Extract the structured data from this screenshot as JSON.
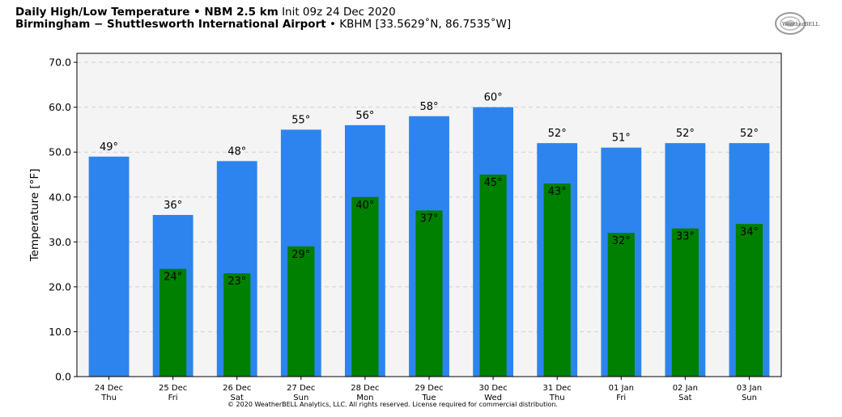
{
  "header": {
    "line1_bold": "Daily High/Low Temperature • NBM 2.5 km",
    "line1_plain": "Init 09z 24 Dec 2020",
    "line2_bold": "Birmingham − Shuttlesworth International Airport",
    "line2_plain": "• KBHM [33.5629˚N, 86.7535˚W]"
  },
  "logo": {
    "text": "WeatherBELL"
  },
  "footer": {
    "copyright": "© 2020 WeatherBELL Analytics, LLC. All rights reserved. License required for commercial distribution."
  },
  "colors": {
    "high": "#2e84ee",
    "low": "#008000",
    "plot_bg": "#f4f4f4"
  },
  "chart_data": {
    "type": "bar",
    "title": "Daily High/Low Temperature • NBM 2.5 km",
    "ylabel": "Temperature [°F]",
    "xlabel": "",
    "ylim": [
      0,
      72
    ],
    "yticks": [
      "0.0",
      "10.0",
      "20.0",
      "30.0",
      "40.0",
      "50.0",
      "60.0",
      "70.0"
    ],
    "grid": true,
    "categories": [
      "24 Dec",
      "25 Dec",
      "26 Dec",
      "27 Dec",
      "28 Dec",
      "29 Dec",
      "30 Dec",
      "31 Dec",
      "01 Jan",
      "02 Jan",
      "03 Jan"
    ],
    "weekdays": [
      "Thu",
      "Fri",
      "Sat",
      "Sun",
      "Mon",
      "Tue",
      "Wed",
      "Thu",
      "Fri",
      "Sat",
      "Sun"
    ],
    "series": [
      {
        "values": [
          49,
          36,
          48,
          55,
          56,
          58,
          60,
          52,
          51,
          52,
          52
        ],
        "labels": [
          "49°",
          "36°",
          "48°",
          "55°",
          "56°",
          "58°",
          "60°",
          "52°",
          "51°",
          "52°",
          "52°"
        ]
      },
      {
        "values": [
          null,
          24,
          23,
          29,
          40,
          37,
          45,
          43,
          32,
          33,
          34
        ],
        "labels": [
          "",
          "24°",
          "23°",
          "29°",
          "40°",
          "37°",
          "45°",
          "43°",
          "32°",
          "33°",
          "34°"
        ]
      }
    ]
  }
}
